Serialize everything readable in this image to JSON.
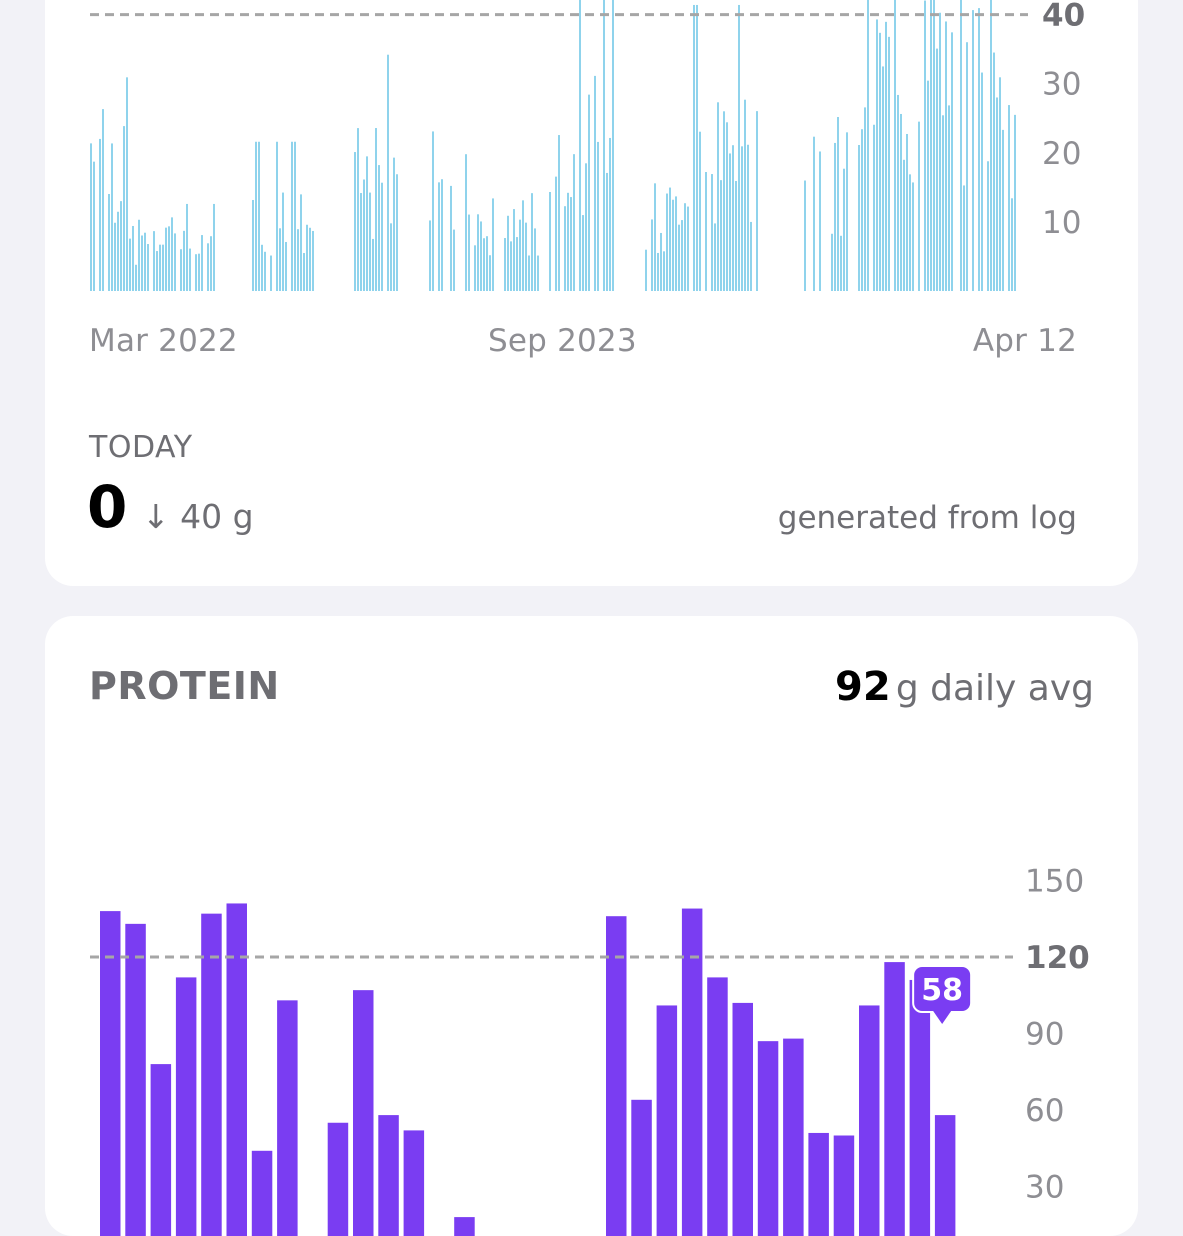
{
  "fiber_card": {
    "title": "",
    "x_tick_labels": [
      "Mar 2022",
      "Sep 2023",
      "Apr 12"
    ],
    "today_label": "TODAY",
    "today_value": "0",
    "today_delta": "↓ 40 g",
    "note": "generated from log",
    "bar_color": "#8fd3ec",
    "goal_color": "#a6a6a6"
  },
  "protein_card": {
    "title": "PROTEIN",
    "daily_avg_value": "92",
    "daily_avg_suffix": "g daily avg",
    "tooltip_value": "58",
    "bar_color": "#7a3df2",
    "goal_color": "#a6a6a6"
  },
  "chart_data": [
    {
      "type": "bar",
      "x_start": "2022-03",
      "x_end": "Apr 12",
      "x_ticks": [
        "Mar 2022",
        "Sep 2023",
        "Apr 12"
      ],
      "y_ticks": [
        10,
        20,
        30,
        40
      ],
      "y_unit": "g",
      "goal_line": 40,
      "ylim": [
        0,
        44
      ],
      "grid": false,
      "segments": [
        {
          "from": 0.0,
          "to": 0.04,
          "level": 25
        },
        {
          "from": 0.04,
          "to": 0.1,
          "level": 9
        },
        {
          "from": 0.1,
          "to": 0.14,
          "level": 7
        },
        {
          "from": 0.17,
          "to": 0.24,
          "level": 12
        },
        {
          "from": 0.28,
          "to": 0.33,
          "level": 19
        },
        {
          "from": 0.36,
          "to": 0.39,
          "level": 20
        },
        {
          "from": 0.4,
          "to": 0.43,
          "level": 11
        },
        {
          "from": 0.44,
          "to": 0.48,
          "level": 12
        },
        {
          "from": 0.49,
          "to": 0.56,
          "level": 25
        },
        {
          "from": 0.59,
          "to": 0.63,
          "level": 13
        },
        {
          "from": 0.63,
          "to": 0.72,
          "level": 23
        },
        {
          "from": 0.76,
          "to": 0.78,
          "level": 26
        },
        {
          "from": 0.79,
          "to": 0.81,
          "level": 22
        },
        {
          "from": 0.82,
          "to": 0.99,
          "level": 38
        }
      ]
    },
    {
      "type": "bar",
      "title": "PROTEIN",
      "y_ticks": [
        30,
        60,
        90,
        120,
        150
      ],
      "y_unit": "g",
      "goal_line": 120,
      "ylim": [
        0,
        150
      ],
      "grid": false,
      "values": [
        138,
        133,
        78,
        112,
        137,
        141,
        44,
        103,
        0,
        55,
        107,
        58,
        52,
        0,
        18,
        0,
        0,
        7,
        0,
        0,
        136,
        64,
        101,
        139,
        112,
        102,
        87,
        88,
        51,
        50,
        101,
        118,
        111,
        58
      ],
      "tooltip": {
        "index": 33,
        "value": 58
      }
    }
  ]
}
